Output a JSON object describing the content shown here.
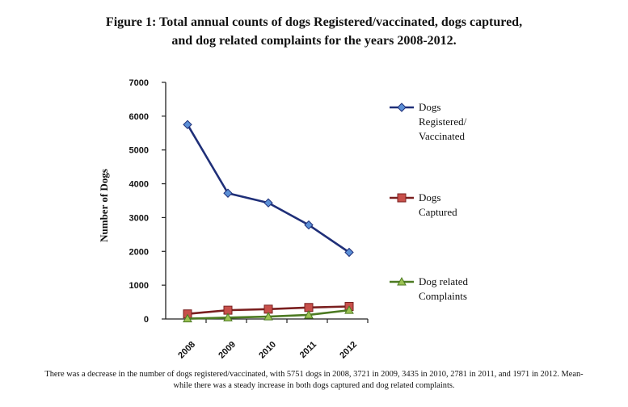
{
  "figure_title": {
    "line1": "Figure 1: Total annual counts of dogs Registered/vaccinated, dogs captured,",
    "line2": "and dog related complaints for the years 2008-2012."
  },
  "caption": {
    "line1": "There was a decrease in the number of dogs registered/vaccinated, with 5751 dogs in 2008, 3721 in 2009, 3435 in 2010, 2781 in 2011, and 1971 in 2012. Mean-",
    "line2": "while there was a steady increase in both dogs captured and dog related complaints."
  },
  "chart_data": {
    "type": "line",
    "title": "Figure 1: Total annual counts of dogs Registered/vaccinated, dogs captured, and dog related complaints for the years 2008-2012.",
    "xlabel": "",
    "ylabel": "Number of Dogs",
    "categories": [
      "2008",
      "2009",
      "2010",
      "2011",
      "2012"
    ],
    "ylim": [
      0,
      7000
    ],
    "yticks": [
      0,
      1000,
      2000,
      3000,
      4000,
      5000,
      6000,
      7000
    ],
    "grid": false,
    "legend_position": "right",
    "series": [
      {
        "name": "Dogs Registered/ Vaccinated",
        "legend_lines": [
          "Dogs",
          "Registered/",
          "Vaccinated"
        ],
        "values": [
          5751,
          3721,
          3435,
          2781,
          1971
        ],
        "color": "#1f2f78",
        "marker_fill": "#5b8fd6",
        "marker": "diamond"
      },
      {
        "name": "Dogs Captured",
        "legend_lines": [
          "Dogs",
          "Captured"
        ],
        "values": [
          150,
          260,
          290,
          340,
          370
        ],
        "color": "#7a1f1f",
        "marker_fill": "#c8504b",
        "marker": "square"
      },
      {
        "name": "Dog related Complaints",
        "legend_lines": [
          "Dog related",
          "Complaints"
        ],
        "values": [
          10,
          40,
          70,
          120,
          260
        ],
        "color": "#4c7a22",
        "marker_fill": "#9bc253",
        "marker": "triangle"
      }
    ]
  }
}
